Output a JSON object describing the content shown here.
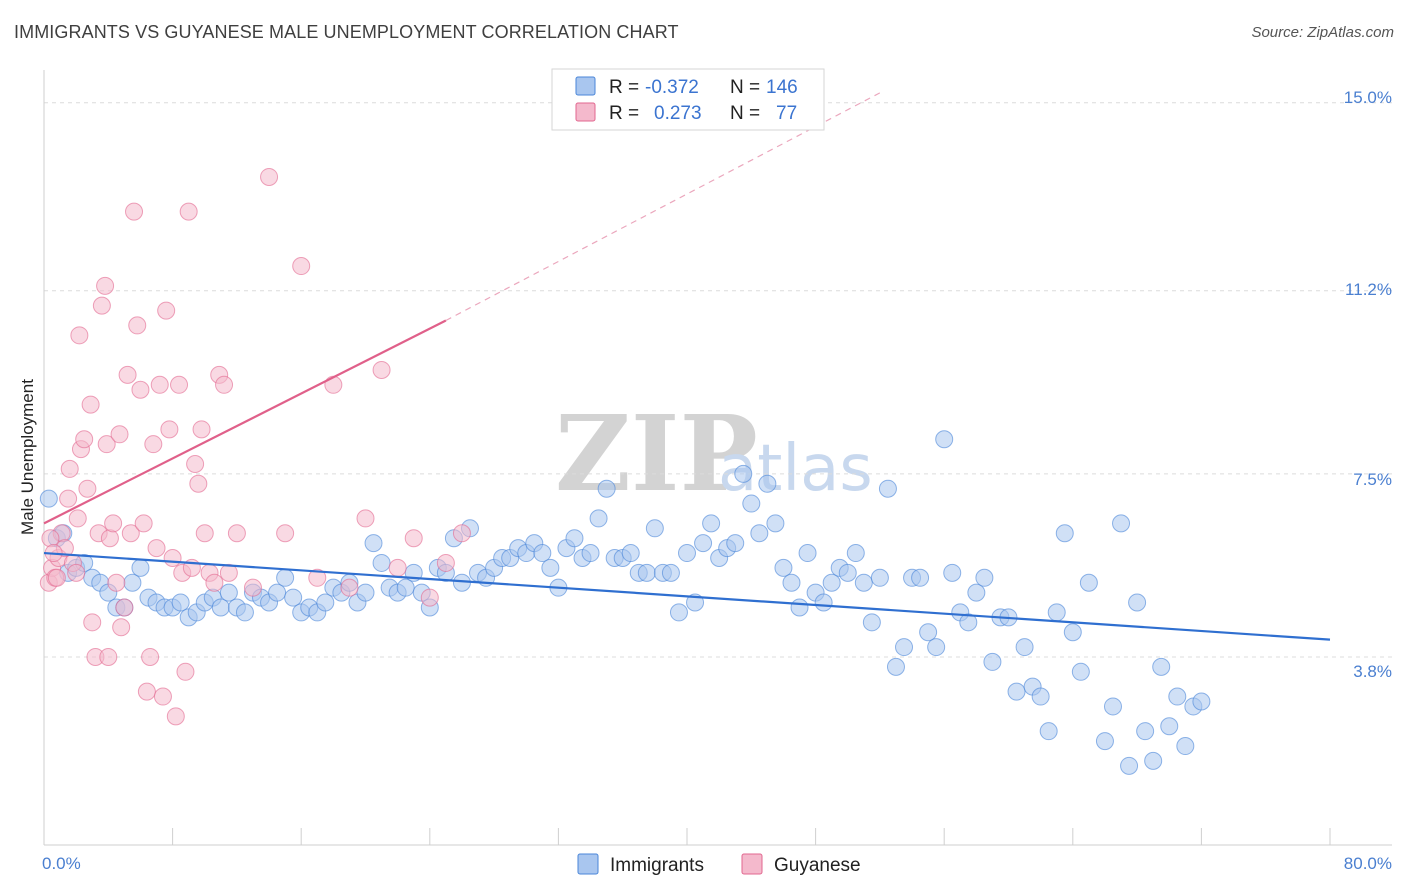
{
  "title": "IMMIGRANTS VS GUYANESE MALE UNEMPLOYMENT CORRELATION CHART",
  "source": "Source: ZipAtlas.com",
  "watermark": {
    "zip": "ZIP",
    "atlas": "atlas"
  },
  "colors": {
    "immigrants": "#4a86d8",
    "immigrants_fill": "#a9c6ef",
    "guyanese": "#e2678f",
    "guyanese_fill": "#f4b9cc",
    "axis_text": "#4a7fd0",
    "grid": "#dcdcdc"
  },
  "legend": {
    "rows": [
      {
        "r_label": "R =",
        "r_value": "-0.372",
        "n_label": "N =",
        "n_value": "146"
      },
      {
        "r_label": "R =",
        "r_value": "0.273",
        "n_label": "N =",
        "n_value": "77"
      }
    ]
  },
  "bottom_legend": [
    "Immigrants",
    "Guyanese"
  ],
  "chart_data": {
    "type": "scatter",
    "title": "IMMIGRANTS VS GUYANESE MALE UNEMPLOYMENT CORRELATION CHART",
    "xlabel": "",
    "ylabel": "Male Unemployment",
    "xlim": [
      0,
      80
    ],
    "ylim": [
      0,
      15.5
    ],
    "x_tick_labels": [
      "0.0%",
      "80.0%"
    ],
    "y_ticks": [
      3.8,
      7.5,
      11.2,
      15.0
    ],
    "y_tick_labels": [
      "3.8%",
      "7.5%",
      "11.2%",
      "15.0%"
    ],
    "series": [
      {
        "name": "Immigrants",
        "R": -0.372,
        "N": 146,
        "trend": {
          "x0": 0,
          "y0": 5.9,
          "x1": 80,
          "y1": 4.15
        },
        "points": [
          [
            0.3,
            7.0
          ],
          [
            0.8,
            6.2
          ],
          [
            1.2,
            6.3
          ],
          [
            1.5,
            5.5
          ],
          [
            2.0,
            5.6
          ],
          [
            2.5,
            5.7
          ],
          [
            3.0,
            5.4
          ],
          [
            3.5,
            5.3
          ],
          [
            4.0,
            5.1
          ],
          [
            4.5,
            4.8
          ],
          [
            5.0,
            4.8
          ],
          [
            5.5,
            5.3
          ],
          [
            6.0,
            5.6
          ],
          [
            6.5,
            5.0
          ],
          [
            7.0,
            4.9
          ],
          [
            7.5,
            4.8
          ],
          [
            8.0,
            4.8
          ],
          [
            8.5,
            4.9
          ],
          [
            9.0,
            4.6
          ],
          [
            9.5,
            4.7
          ],
          [
            10.0,
            4.9
          ],
          [
            10.5,
            5.0
          ],
          [
            11.0,
            4.8
          ],
          [
            11.5,
            5.1
          ],
          [
            12.0,
            4.8
          ],
          [
            12.5,
            4.7
          ],
          [
            13.0,
            5.1
          ],
          [
            13.5,
            5.0
          ],
          [
            14.0,
            4.9
          ],
          [
            14.5,
            5.1
          ],
          [
            15.0,
            5.4
          ],
          [
            15.5,
            5.0
          ],
          [
            16.0,
            4.7
          ],
          [
            16.5,
            4.8
          ],
          [
            17.0,
            4.7
          ],
          [
            17.5,
            4.9
          ],
          [
            18.0,
            5.2
          ],
          [
            18.5,
            5.1
          ],
          [
            19.0,
            5.3
          ],
          [
            19.5,
            4.9
          ],
          [
            20.0,
            5.1
          ],
          [
            20.5,
            6.1
          ],
          [
            21.0,
            5.7
          ],
          [
            21.5,
            5.2
          ],
          [
            22.0,
            5.1
          ],
          [
            22.5,
            5.2
          ],
          [
            23.0,
            5.5
          ],
          [
            23.5,
            5.1
          ],
          [
            24.0,
            4.8
          ],
          [
            24.5,
            5.6
          ],
          [
            25.0,
            5.5
          ],
          [
            25.5,
            6.2
          ],
          [
            26.0,
            5.3
          ],
          [
            26.5,
            6.4
          ],
          [
            27.0,
            5.5
          ],
          [
            27.5,
            5.4
          ],
          [
            28.0,
            5.6
          ],
          [
            28.5,
            5.8
          ],
          [
            29.0,
            5.8
          ],
          [
            29.5,
            6.0
          ],
          [
            30.0,
            5.9
          ],
          [
            30.5,
            6.1
          ],
          [
            31.0,
            5.9
          ],
          [
            31.5,
            5.6
          ],
          [
            32.0,
            5.2
          ],
          [
            32.5,
            6.0
          ],
          [
            33.0,
            6.2
          ],
          [
            33.5,
            5.8
          ],
          [
            34.0,
            5.9
          ],
          [
            34.5,
            6.6
          ],
          [
            35.0,
            7.2
          ],
          [
            35.5,
            5.8
          ],
          [
            36.0,
            5.8
          ],
          [
            36.5,
            5.9
          ],
          [
            37.0,
            5.5
          ],
          [
            37.5,
            5.5
          ],
          [
            38.0,
            6.4
          ],
          [
            38.5,
            5.5
          ],
          [
            39.0,
            5.5
          ],
          [
            39.5,
            4.7
          ],
          [
            40.0,
            5.9
          ],
          [
            40.5,
            4.9
          ],
          [
            41.0,
            6.1
          ],
          [
            41.5,
            6.5
          ],
          [
            42.0,
            5.8
          ],
          [
            42.5,
            6.0
          ],
          [
            43.0,
            6.1
          ],
          [
            43.5,
            7.5
          ],
          [
            44.0,
            6.9
          ],
          [
            44.5,
            6.3
          ],
          [
            45.0,
            7.3
          ],
          [
            45.5,
            6.5
          ],
          [
            46.0,
            5.6
          ],
          [
            46.5,
            5.3
          ],
          [
            47.0,
            4.8
          ],
          [
            47.5,
            5.9
          ],
          [
            48.0,
            5.1
          ],
          [
            48.5,
            4.9
          ],
          [
            49.0,
            5.3
          ],
          [
            49.5,
            5.6
          ],
          [
            50.0,
            5.5
          ],
          [
            50.5,
            5.9
          ],
          [
            51.0,
            5.3
          ],
          [
            51.5,
            4.5
          ],
          [
            52.0,
            5.4
          ],
          [
            52.5,
            7.2
          ],
          [
            53.0,
            3.6
          ],
          [
            53.5,
            4.0
          ],
          [
            54.0,
            5.4
          ],
          [
            54.5,
            5.4
          ],
          [
            55.0,
            4.3
          ],
          [
            55.5,
            4.0
          ],
          [
            56.0,
            8.2
          ],
          [
            56.5,
            5.5
          ],
          [
            57.0,
            4.7
          ],
          [
            57.5,
            4.5
          ],
          [
            58.0,
            5.1
          ],
          [
            58.5,
            5.4
          ],
          [
            59.0,
            3.7
          ],
          [
            59.5,
            4.6
          ],
          [
            60.0,
            4.6
          ],
          [
            60.5,
            3.1
          ],
          [
            61.0,
            4.0
          ],
          [
            61.5,
            3.2
          ],
          [
            62.0,
            3.0
          ],
          [
            62.5,
            2.3
          ],
          [
            63.0,
            4.7
          ],
          [
            63.5,
            6.3
          ],
          [
            64.0,
            4.3
          ],
          [
            64.5,
            3.5
          ],
          [
            65.0,
            5.3
          ],
          [
            66.0,
            2.1
          ],
          [
            66.5,
            2.8
          ],
          [
            67.0,
            6.5
          ],
          [
            67.5,
            1.6
          ],
          [
            68.0,
            4.9
          ],
          [
            68.5,
            2.3
          ],
          [
            69.0,
            1.7
          ],
          [
            69.5,
            3.6
          ],
          [
            70.0,
            2.4
          ],
          [
            70.5,
            3.0
          ],
          [
            71.0,
            2.0
          ],
          [
            71.5,
            2.8
          ],
          [
            72.0,
            2.9
          ]
        ]
      },
      {
        "name": "Guyanese",
        "R": 0.273,
        "N": 77,
        "trend": {
          "x0": 0,
          "y0": 6.5,
          "x1": 25,
          "y1": 10.6,
          "dash_to": {
            "x": 52,
            "y": 15.2
          }
        },
        "points": [
          [
            0.3,
            5.3
          ],
          [
            0.5,
            5.6
          ],
          [
            0.7,
            5.4
          ],
          [
            0.9,
            5.8
          ],
          [
            1.1,
            6.3
          ],
          [
            1.3,
            6.0
          ],
          [
            1.5,
            7.0
          ],
          [
            1.6,
            7.6
          ],
          [
            1.8,
            5.7
          ],
          [
            2.0,
            5.5
          ],
          [
            2.1,
            6.6
          ],
          [
            2.2,
            10.3
          ],
          [
            2.3,
            8.0
          ],
          [
            2.5,
            8.2
          ],
          [
            2.7,
            7.2
          ],
          [
            2.9,
            8.9
          ],
          [
            3.0,
            4.5
          ],
          [
            3.2,
            3.8
          ],
          [
            3.4,
            6.3
          ],
          [
            3.6,
            10.9
          ],
          [
            3.8,
            11.3
          ],
          [
            3.9,
            8.1
          ],
          [
            4.0,
            3.8
          ],
          [
            4.1,
            6.2
          ],
          [
            4.3,
            6.5
          ],
          [
            4.5,
            5.3
          ],
          [
            4.7,
            8.3
          ],
          [
            4.8,
            4.4
          ],
          [
            5.0,
            4.8
          ],
          [
            5.2,
            9.5
          ],
          [
            5.4,
            6.3
          ],
          [
            5.6,
            12.8
          ],
          [
            5.8,
            10.5
          ],
          [
            6.0,
            9.2
          ],
          [
            6.2,
            6.5
          ],
          [
            6.4,
            3.1
          ],
          [
            6.6,
            3.8
          ],
          [
            6.8,
            8.1
          ],
          [
            7.0,
            6.0
          ],
          [
            7.2,
            9.3
          ],
          [
            7.4,
            3.0
          ],
          [
            7.6,
            10.8
          ],
          [
            7.8,
            8.4
          ],
          [
            8.0,
            5.8
          ],
          [
            8.2,
            2.6
          ],
          [
            8.4,
            9.3
          ],
          [
            8.6,
            5.5
          ],
          [
            8.8,
            3.5
          ],
          [
            9.0,
            12.8
          ],
          [
            9.2,
            5.6
          ],
          [
            9.4,
            7.7
          ],
          [
            9.6,
            7.3
          ],
          [
            9.8,
            8.4
          ],
          [
            10.0,
            6.3
          ],
          [
            10.3,
            5.5
          ],
          [
            10.6,
            5.3
          ],
          [
            10.9,
            9.5
          ],
          [
            11.2,
            9.3
          ],
          [
            11.5,
            5.5
          ],
          [
            12.0,
            6.3
          ],
          [
            13.0,
            5.2
          ],
          [
            14.0,
            13.5
          ],
          [
            15.0,
            6.3
          ],
          [
            16.0,
            11.7
          ],
          [
            17.0,
            5.4
          ],
          [
            18.0,
            9.3
          ],
          [
            19.0,
            5.2
          ],
          [
            20.0,
            6.6
          ],
          [
            21.0,
            9.6
          ],
          [
            22.0,
            5.6
          ],
          [
            23.0,
            6.2
          ],
          [
            24.0,
            5.0
          ],
          [
            25.0,
            5.7
          ],
          [
            26.0,
            6.3
          ],
          [
            0.4,
            6.2
          ],
          [
            0.6,
            5.9
          ],
          [
            0.8,
            5.4
          ]
        ]
      }
    ]
  }
}
